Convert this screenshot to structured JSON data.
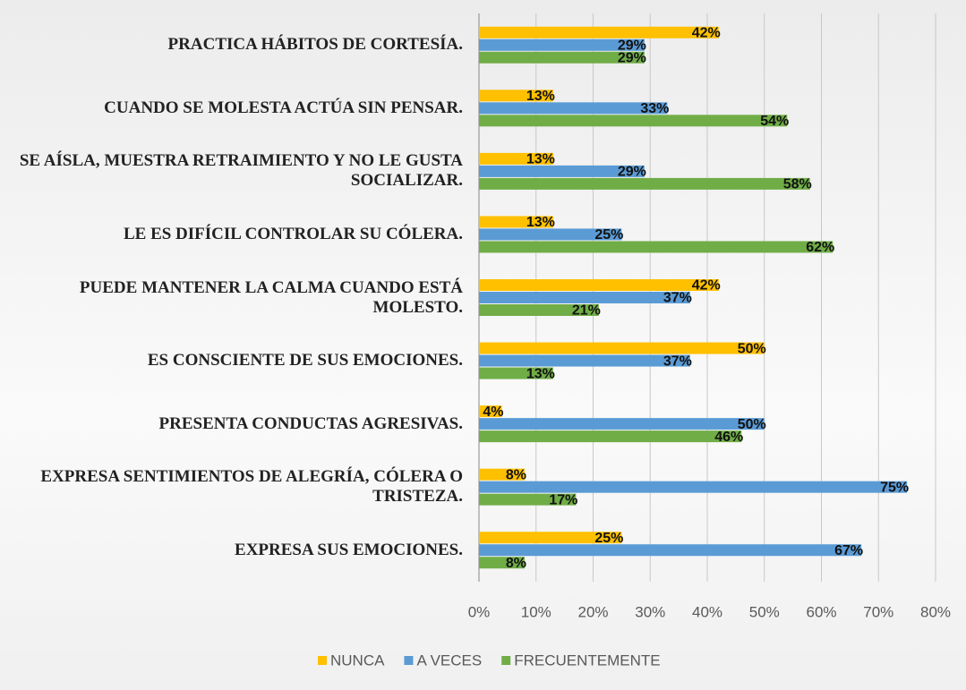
{
  "chart_data": {
    "type": "hbar",
    "categories": [
      "PRACTICA HÁBITOS DE CORTESÍA.",
      "CUANDO SE MOLESTA ACTÚA SIN PENSAR.",
      "SE AÍSLA, MUESTRA RETRAIMIENTO Y NO LE GUSTA SOCIALIZAR.",
      "LE ES DIFÍCIL CONTROLAR SU CÓLERA.",
      "PUEDE MANTENER LA CALMA CUANDO ESTÁ MOLESTO.",
      "ES CONSCIENTE DE SUS EMOCIONES.",
      "PRESENTA CONDUCTAS AGRESIVAS.",
      "EXPRESA SENTIMIENTOS DE ALEGRÍA, CÓLERA O TRISTEZA.",
      "EXPRESA SUS EMOCIONES."
    ],
    "series": [
      {
        "name": "NUNCA",
        "color": "#ffc000",
        "values": [
          42,
          13,
          13,
          13,
          42,
          50,
          4,
          8,
          25
        ],
        "value_labels": [
          "42%",
          "13%",
          "13%",
          "13%",
          "42%",
          "50%",
          "4%",
          "8%",
          "25%"
        ]
      },
      {
        "name": "A VECES",
        "color": "#5b9bd5",
        "values": [
          29,
          33,
          29,
          25,
          37,
          37,
          50,
          75,
          67
        ],
        "value_labels": [
          "29%",
          "33%",
          "29%",
          "25%",
          "37%",
          "37%",
          "50%",
          "75%",
          "67%"
        ]
      },
      {
        "name": "FRECUENTEMENTE",
        "color": "#70ad47",
        "values": [
          29,
          54,
          58,
          62,
          21,
          13,
          46,
          17,
          8
        ],
        "value_labels": [
          "29%",
          "54%",
          "58%",
          "62%",
          "21%",
          "13%",
          "46%",
          "17%",
          "8%"
        ]
      }
    ],
    "xlim": [
      0,
      80
    ],
    "xticks": [
      {
        "value": 0,
        "label": "0%"
      },
      {
        "value": 10,
        "label": "10%"
      },
      {
        "value": 20,
        "label": "20%"
      },
      {
        "value": 30,
        "label": "30%"
      },
      {
        "value": 40,
        "label": "40%"
      },
      {
        "value": 50,
        "label": "50%"
      },
      {
        "value": 60,
        "label": "60%"
      },
      {
        "value": 70,
        "label": "70%"
      },
      {
        "value": 80,
        "label": "80%"
      }
    ],
    "grid": true,
    "legend": "bottom"
  }
}
